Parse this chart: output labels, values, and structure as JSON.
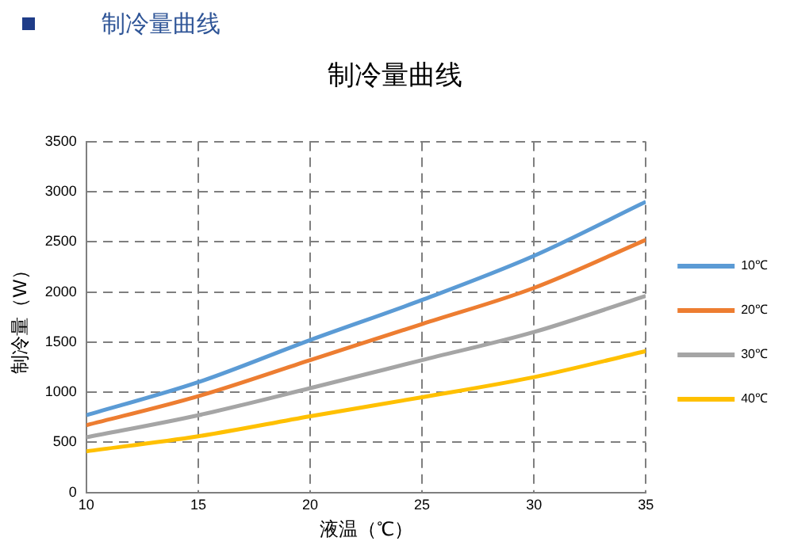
{
  "chart_data": {
    "type": "line",
    "title": "制冷量曲线",
    "subtitle": "制冷量曲线",
    "xlabel": "液温（℃）",
    "ylabel": "制冷量（W）",
    "x": [
      10,
      15,
      20,
      25,
      30,
      35
    ],
    "xlim": [
      10,
      35
    ],
    "xticks": [
      10,
      15,
      20,
      25,
      30,
      35
    ],
    "ylim": [
      0,
      3500
    ],
    "yticks": [
      0,
      500,
      1000,
      1500,
      2000,
      2500,
      3000,
      3500
    ],
    "grid": true,
    "legend": "right",
    "marker": "none",
    "series": [
      {
        "name": "10℃",
        "color": "#5b9bd5",
        "values": [
          770,
          1100,
          1520,
          1920,
          2360,
          2900
        ]
      },
      {
        "name": "20℃",
        "color": "#ed7d31",
        "values": [
          670,
          960,
          1320,
          1680,
          2040,
          2520
        ]
      },
      {
        "name": "30℃",
        "color": "#a5a5a5",
        "values": [
          550,
          770,
          1040,
          1320,
          1600,
          1960
        ]
      },
      {
        "name": "40℃",
        "color": "#ffc000",
        "values": [
          410,
          560,
          760,
          950,
          1150,
          1410
        ]
      }
    ]
  }
}
